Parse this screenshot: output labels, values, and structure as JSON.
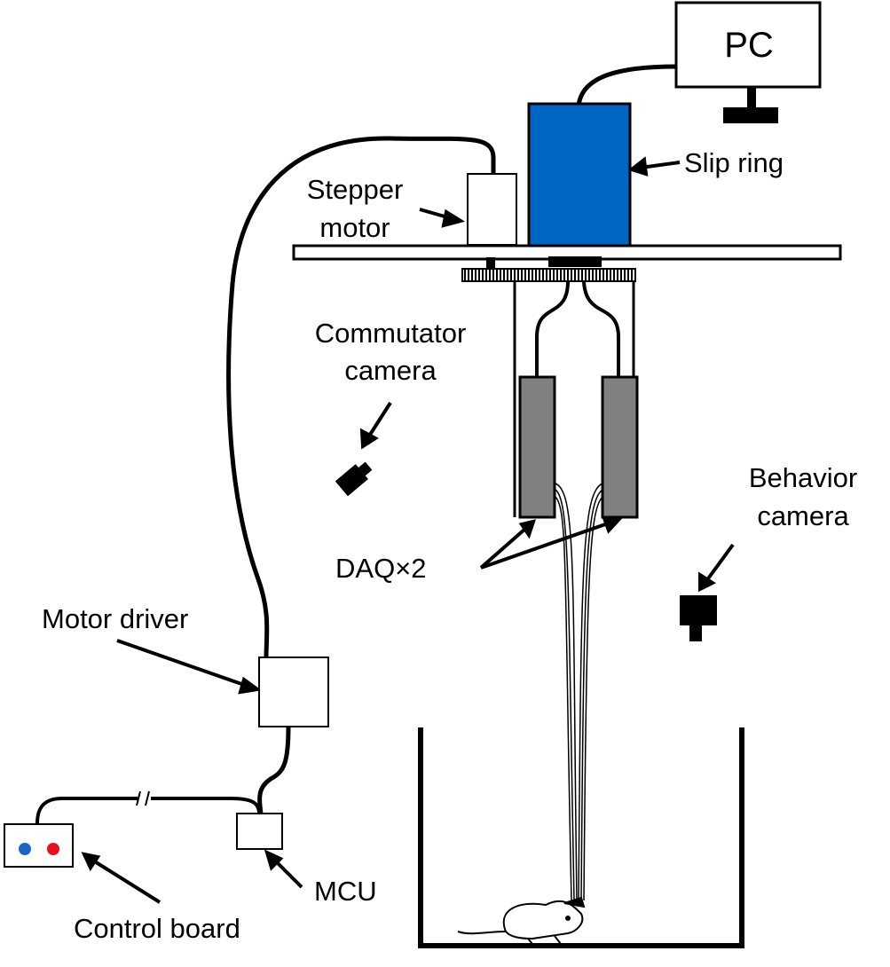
{
  "labels": {
    "pc": "PC",
    "slip_ring": "Slip ring",
    "stepper_line1": "Stepper",
    "stepper_line2": "motor",
    "commutator_line1": "Commutator",
    "commutator_line2": "camera",
    "behavior_line1": "Behavior",
    "behavior_line2": "camera",
    "daq": "DAQ×2",
    "motor_driver": "Motor driver",
    "mcu": "MCU",
    "control_board": "Control board"
  },
  "colors": {
    "slip_ring": "#0066c4",
    "daq": "#808080",
    "button_left": "#1a66c8",
    "button_right": "#e8101a",
    "line": "#000000"
  }
}
